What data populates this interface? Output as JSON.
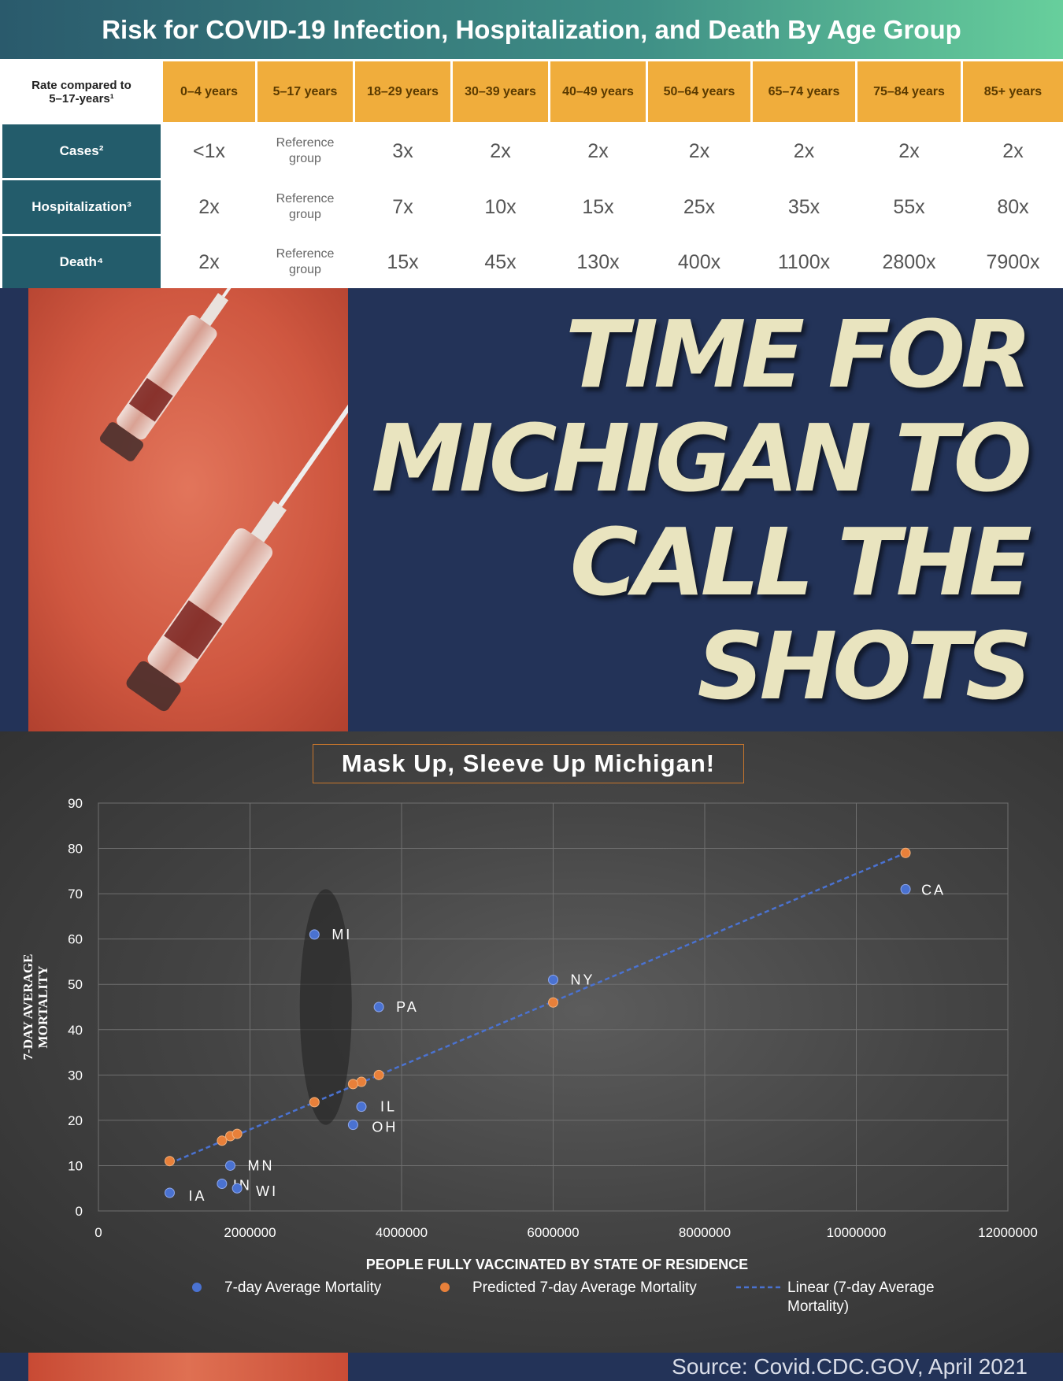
{
  "header": {
    "title": "Risk for COVID-19 Infection, Hospitalization, and Death By Age Group"
  },
  "table": {
    "corner_label": "Rate compared to 5–17-years¹",
    "age_groups": [
      "0–4 years",
      "5–17 years",
      "18–29 years",
      "30–39 years",
      "40–49 years",
      "50–64 years",
      "65–74 years",
      "75–84 years",
      "85+ years"
    ],
    "rows": [
      {
        "label": "Cases²",
        "values": [
          "<1x",
          "Reference group",
          "3x",
          "2x",
          "2x",
          "2x",
          "2x",
          "2x",
          "2x"
        ]
      },
      {
        "label": "Hospitalization³",
        "values": [
          "2x",
          "Reference group",
          "7x",
          "10x",
          "15x",
          "25x",
          "35x",
          "55x",
          "80x"
        ]
      },
      {
        "label": "Death⁴",
        "values": [
          "2x",
          "Reference group",
          "15x",
          "45x",
          "130x",
          "400x",
          "1100x",
          "2800x",
          "7900x"
        ]
      }
    ]
  },
  "banner": {
    "headline_lines": [
      "TIME FOR",
      "MICHIGAN TO",
      "CALL THE",
      "SHOTS"
    ]
  },
  "chart_data": {
    "type": "scatter",
    "title": "Mask Up, Sleeve Up Michigan!",
    "xlabel": "PEOPLE FULLY VACCINATED BY STATE OF RESIDENCE",
    "ylabel": "7-DAY AVERAGE MORTALITY",
    "xlim": [
      0,
      12000000
    ],
    "ylim": [
      0,
      90
    ],
    "xticks": [
      0,
      2000000,
      4000000,
      6000000,
      8000000,
      10000000,
      12000000
    ],
    "yticks": [
      0,
      10,
      20,
      30,
      40,
      50,
      60,
      70,
      80,
      90
    ],
    "grid": true,
    "legend_position": "bottom",
    "highlight": {
      "label": "MI",
      "x": 3000000,
      "y_range": [
        19,
        71
      ]
    },
    "series": [
      {
        "name": "7-day Average Mortality",
        "color": "#4a72d1",
        "points": [
          {
            "label": "CA",
            "x": 10650000,
            "y": 71
          },
          {
            "label": "NY",
            "x": 6000000,
            "y": 51
          },
          {
            "label": "MI",
            "x": 2850000,
            "y": 61
          },
          {
            "label": "PA",
            "x": 3700000,
            "y": 45
          },
          {
            "label": "IL",
            "x": 3470000,
            "y": 23
          },
          {
            "label": "OH",
            "x": 3360000,
            "y": 19
          },
          {
            "label": "MN",
            "x": 1740000,
            "y": 10
          },
          {
            "label": "IN",
            "x": 1630000,
            "y": 6
          },
          {
            "label": "WI",
            "x": 1830000,
            "y": 5
          },
          {
            "label": "IA",
            "x": 940000,
            "y": 4
          }
        ]
      },
      {
        "name": "Predicted 7-day Average Mortality",
        "color": "#e8803a",
        "points": [
          {
            "x": 10650000,
            "y": 79
          },
          {
            "x": 6000000,
            "y": 46
          },
          {
            "x": 2850000,
            "y": 24
          },
          {
            "x": 3700000,
            "y": 30
          },
          {
            "x": 3470000,
            "y": 28.5
          },
          {
            "x": 3360000,
            "y": 28
          },
          {
            "x": 1740000,
            "y": 16.5
          },
          {
            "x": 1630000,
            "y": 15.5
          },
          {
            "x": 1830000,
            "y": 17
          },
          {
            "x": 940000,
            "y": 11
          }
        ]
      },
      {
        "name": "Linear (7-day Average Mortality)",
        "color": "#4a72d1",
        "line": [
          {
            "x": 940000,
            "y": 10.5
          },
          {
            "x": 10650000,
            "y": 79
          }
        ]
      }
    ],
    "legend": [
      "7-day Average Mortality",
      "Predicted 7-day Average Mortality",
      "Linear (7-day Average Mortality)"
    ]
  },
  "footer": {
    "source": "Source: Covid.CDC.GOV, April 2021"
  }
}
